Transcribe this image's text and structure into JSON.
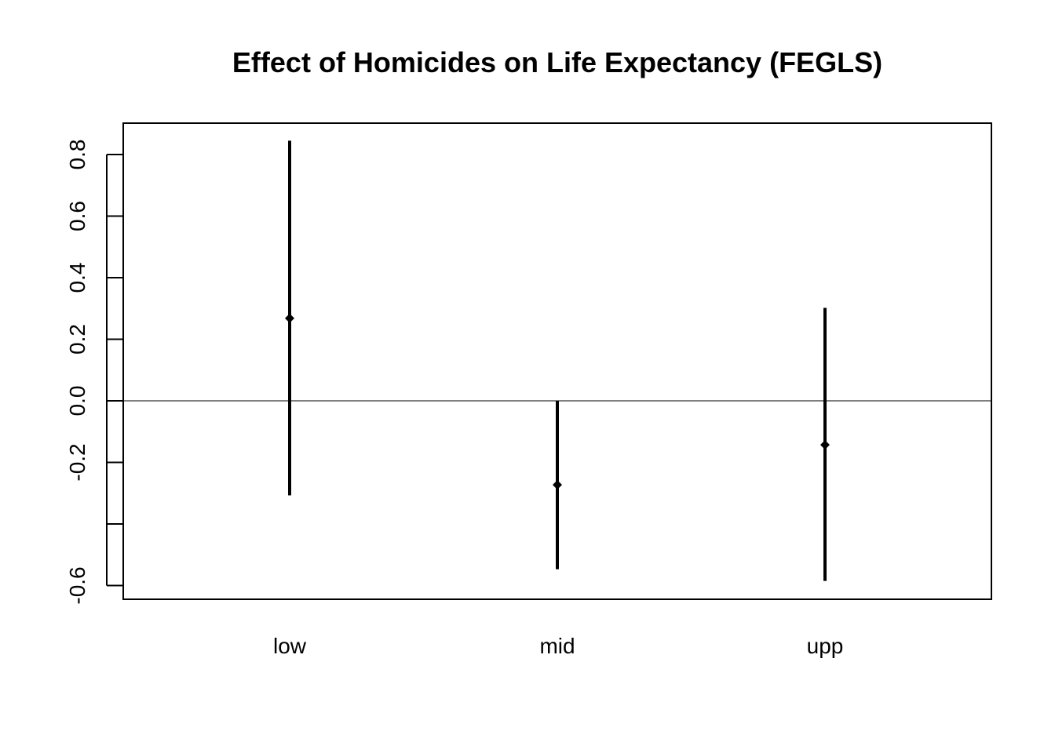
{
  "chart_data": {
    "type": "errorbar",
    "title": "Effect of Homicides on Life Expectancy (FEGLS)",
    "xlabel": "",
    "ylabel": "",
    "categories": [
      "low",
      "mid",
      "upp"
    ],
    "estimates": [
      0.268,
      -0.273,
      -0.143
    ],
    "lower": [
      -0.307,
      -0.547,
      -0.585
    ],
    "upper": [
      0.845,
      0.0,
      0.302
    ],
    "ylim": [
      -0.64,
      0.9
    ],
    "y_ticks": [
      -0.6,
      -0.4,
      -0.2,
      0.0,
      0.2,
      0.4,
      0.6,
      0.8
    ],
    "y_tick_labels": [
      "-0.6",
      "",
      "-0.2",
      "0.0",
      "0.2",
      "0.4",
      "0.6",
      "0.8"
    ],
    "reference_line": 0.0,
    "grid": false,
    "legend": "none",
    "colors": {
      "marks": "#000000",
      "background": "#ffffff"
    }
  }
}
